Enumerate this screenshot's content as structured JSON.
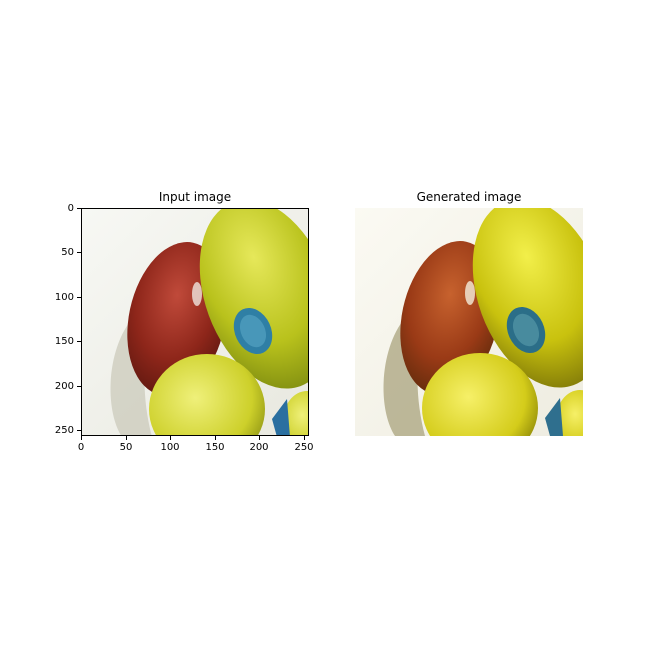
{
  "left_panel": {
    "title": "Input image",
    "y_ticks": [
      "0",
      "50",
      "100",
      "150",
      "200",
      "250"
    ],
    "x_ticks": [
      "0",
      "50",
      "100",
      "150",
      "200",
      "250"
    ]
  },
  "right_panel": {
    "title": "Generated image"
  },
  "image_content": {
    "subject": "two apples: red apple and green-yellow apples with a blue sticker",
    "colors": {
      "red_apple": "#9c2b1d",
      "green_apple": "#c4c71a",
      "yellow_apple": "#dede3a",
      "background": "#f4f4ef",
      "sticker": "#2f7fa5"
    }
  }
}
